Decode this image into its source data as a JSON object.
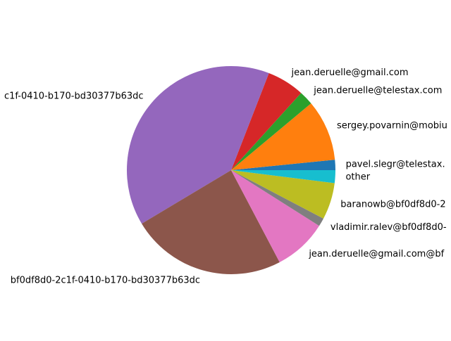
{
  "chart_data": {
    "type": "pie",
    "start_angle_deg": 0,
    "direction": "counterclockwise",
    "slices": [
      {
        "label": "pavel.slegr@telestax.",
        "value": 1.6,
        "color": "#1f77b4"
      },
      {
        "label": "sergey.povarnin@mobiu",
        "value": 9.5,
        "color": "#ff7f0e"
      },
      {
        "label": "jean.deruelle@telestax.com",
        "value": 2.2,
        "color": "#2ca02c"
      },
      {
        "label": "jean.deruelle@gmail.com",
        "value": 5.8,
        "color": "#d62728"
      },
      {
        "label": "c1f-0410-b170-bd30377b63dc",
        "value": 39.5,
        "color": "#9467bd"
      },
      {
        "label": "bf0df8d0-2c1f-0410-b170-bd30377b63dc",
        "value": 24.1,
        "color": "#8c564b"
      },
      {
        "label": "jean.deruelle@gmail.com@bf",
        "value": 8.3,
        "color": "#e377c2"
      },
      {
        "label": "vladimir.ralev@bf0df8d0-",
        "value": 1.3,
        "color": "#7f7f7f"
      },
      {
        "label": "baranowb@bf0df8d0-2",
        "value": 5.7,
        "color": "#bcbd22"
      },
      {
        "label": "other",
        "value": 2.0,
        "color": "#17becf"
      }
    ]
  }
}
